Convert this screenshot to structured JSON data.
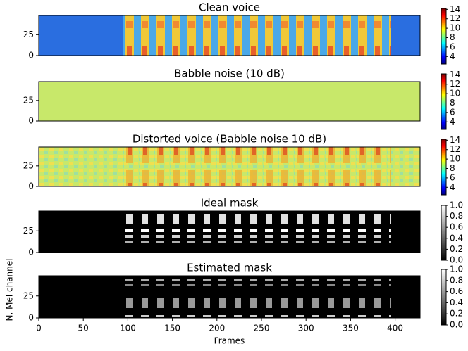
{
  "chart_data": [
    {
      "type": "heatmap",
      "title": "Clean voice",
      "colormap": "jet",
      "xlim": [
        0,
        428
      ],
      "ylim": [
        0,
        48
      ],
      "yticks": [
        0,
        25
      ],
      "clim": [
        2.4,
        14.2
      ],
      "cticks": [
        4,
        6,
        8,
        10,
        12,
        14
      ]
    },
    {
      "type": "heatmap",
      "title": "Babble noise (10 dB)",
      "colormap": "jet",
      "xlim": [
        0,
        428
      ],
      "ylim": [
        0,
        48
      ],
      "yticks": [
        0,
        25
      ],
      "clim": [
        2.4,
        14.2
      ],
      "cticks": [
        4,
        6,
        8,
        10,
        12,
        14
      ]
    },
    {
      "type": "heatmap",
      "title": "Distorted voice (Babble noise 10 dB)",
      "colormap": "jet",
      "xlim": [
        0,
        428
      ],
      "ylim": [
        0,
        48
      ],
      "yticks": [
        0,
        25
      ],
      "clim": [
        2.4,
        14.2
      ],
      "cticks": [
        4,
        6,
        8,
        10,
        12,
        14
      ]
    },
    {
      "type": "heatmap",
      "title": "Ideal mask",
      "colormap": "gray",
      "xlim": [
        0,
        428
      ],
      "ylim": [
        0,
        48
      ],
      "yticks": [
        0,
        25
      ],
      "clim": [
        0,
        1
      ],
      "cticks": [
        {
          "value": 0,
          "label": "0.0"
        },
        0.2,
        0.4,
        0.6,
        0.8,
        {
          "value": 1,
          "label": "1.0"
        }
      ]
    },
    {
      "type": "heatmap",
      "title": "Estimated mask",
      "colormap": "gray",
      "xlim": [
        0,
        428
      ],
      "ylim": [
        0,
        48
      ],
      "yticks": [
        0,
        25
      ],
      "clim": [
        0,
        1
      ],
      "cticks": [
        {
          "value": 0,
          "label": "0.0"
        },
        0.2,
        0.4,
        0.6,
        0.8,
        {
          "value": 1,
          "label": "1.0"
        }
      ],
      "xticks": [
        0,
        50,
        100,
        150,
        200,
        250,
        300,
        350,
        400
      ],
      "xlabel": "Frames",
      "ylabel": "N. Mel channel"
    }
  ]
}
